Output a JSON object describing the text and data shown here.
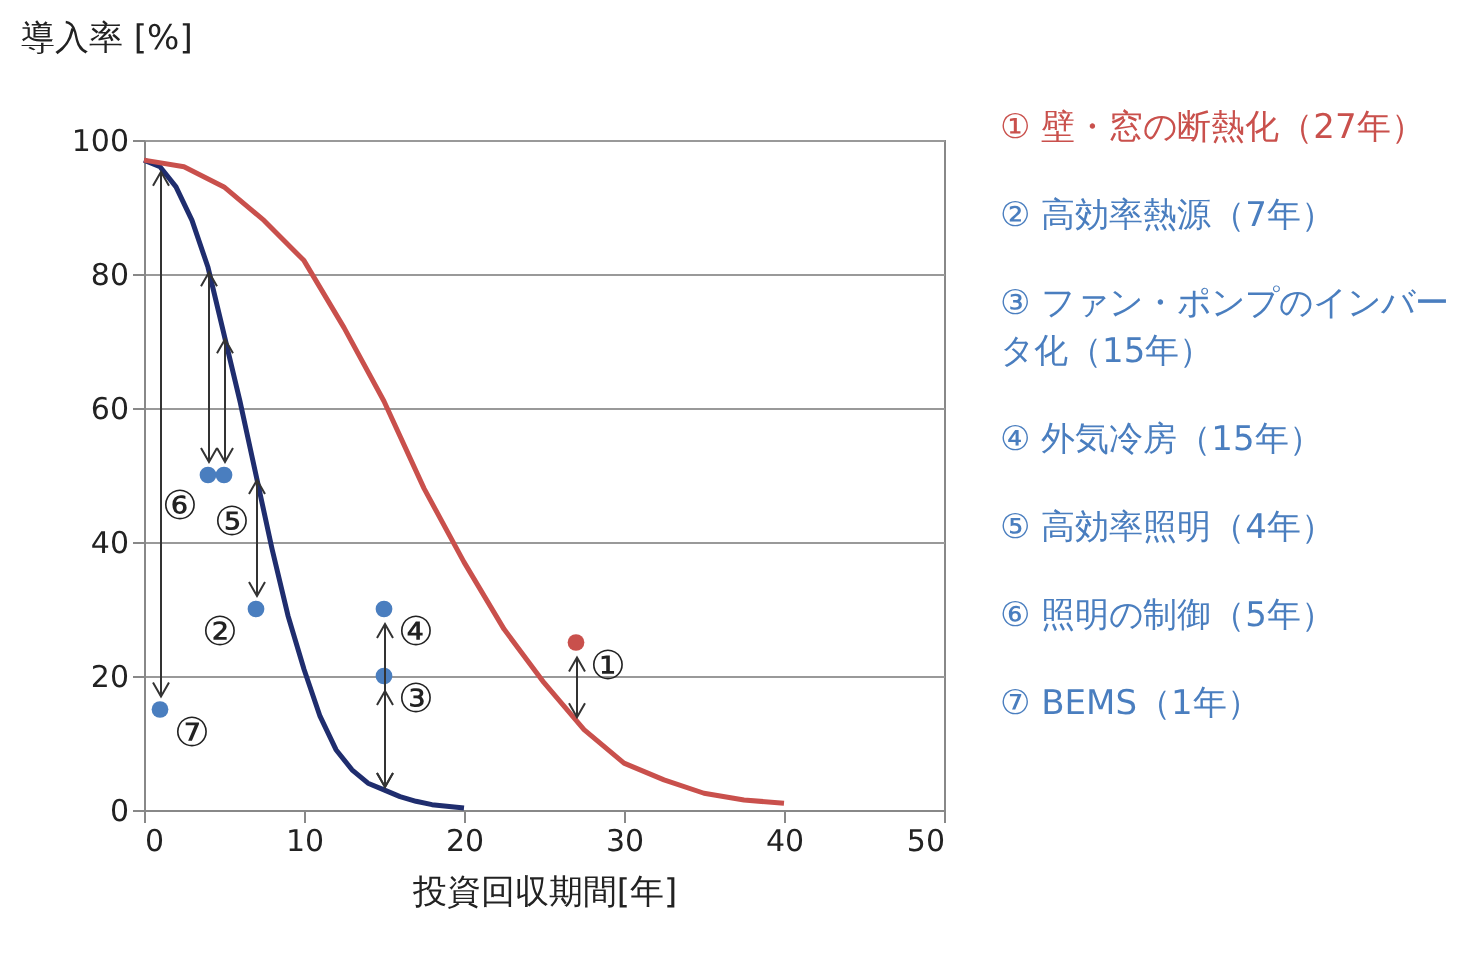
{
  "chart_data": {
    "type": "scatter",
    "ylabel": "導入率 [%]",
    "xlabel": "投資回収期間[年]",
    "xlim": [
      0,
      50
    ],
    "xticks": [
      0,
      10,
      20,
      30,
      40,
      50
    ],
    "ylim": [
      0,
      100
    ],
    "yticks": [
      0,
      20,
      40,
      60,
      80,
      100
    ],
    "grid": "y",
    "series": [
      {
        "type": "line",
        "color": "#1f2d6e",
        "x": [
          0,
          1,
          2,
          3,
          4,
          5,
          6,
          7,
          8,
          9,
          10,
          11,
          12,
          13,
          14,
          15,
          16,
          17,
          18,
          20
        ],
        "values": [
          97,
          96,
          93,
          88,
          81,
          71,
          61,
          50,
          39,
          29,
          21,
          14,
          9,
          6,
          4,
          3,
          2,
          1.3,
          0.8,
          0.3
        ]
      },
      {
        "type": "line",
        "color": "#c9504c",
        "x": [
          0,
          2.5,
          5,
          7.5,
          10,
          12.5,
          15,
          17.5,
          20,
          22.5,
          25,
          27.5,
          30,
          32.5,
          35,
          37.5,
          40
        ],
        "values": [
          97,
          96,
          93,
          88,
          82,
          72,
          61,
          48,
          37,
          27,
          19,
          12,
          7,
          4.5,
          2.5,
          1.5,
          1
        ]
      },
      {
        "marker": "circle",
        "colors": [
          "#c9504c",
          "#4a7ebf",
          "#4a7ebf",
          "#4a7ebf",
          "#4a7ebf",
          "#4a7ebf",
          "#4a7ebf"
        ],
        "x": [
          27,
          7,
          15,
          15,
          5,
          4,
          1
        ],
        "values": [
          25,
          30,
          20,
          30,
          50,
          50,
          15
        ]
      }
    ],
    "annotations": [
      "① 壁・窓の断熱化（27年）",
      "② 高効率熱源（7年）",
      "③ ファン・ポンプのインバータ化（15年）",
      "④ 外気冷房（15年）",
      "⑤ 高効率照明（4年）",
      "⑥ 照明の制御（5年）",
      "⑦ BEMS（1年）",
      {
        "text": "①",
        "x": 27,
        "y": 25
      },
      {
        "text": "②",
        "x": 7,
        "y": 30
      },
      {
        "text": "③",
        "x": 15,
        "y": 20
      },
      {
        "text": "④",
        "x": 15,
        "y": 30
      },
      {
        "text": "⑤",
        "x": 5,
        "y": 50
      },
      {
        "text": "⑥",
        "x": 4,
        "y": 50
      },
      {
        "text": "⑦",
        "x": 1,
        "y": 15
      }
    ]
  }
}
